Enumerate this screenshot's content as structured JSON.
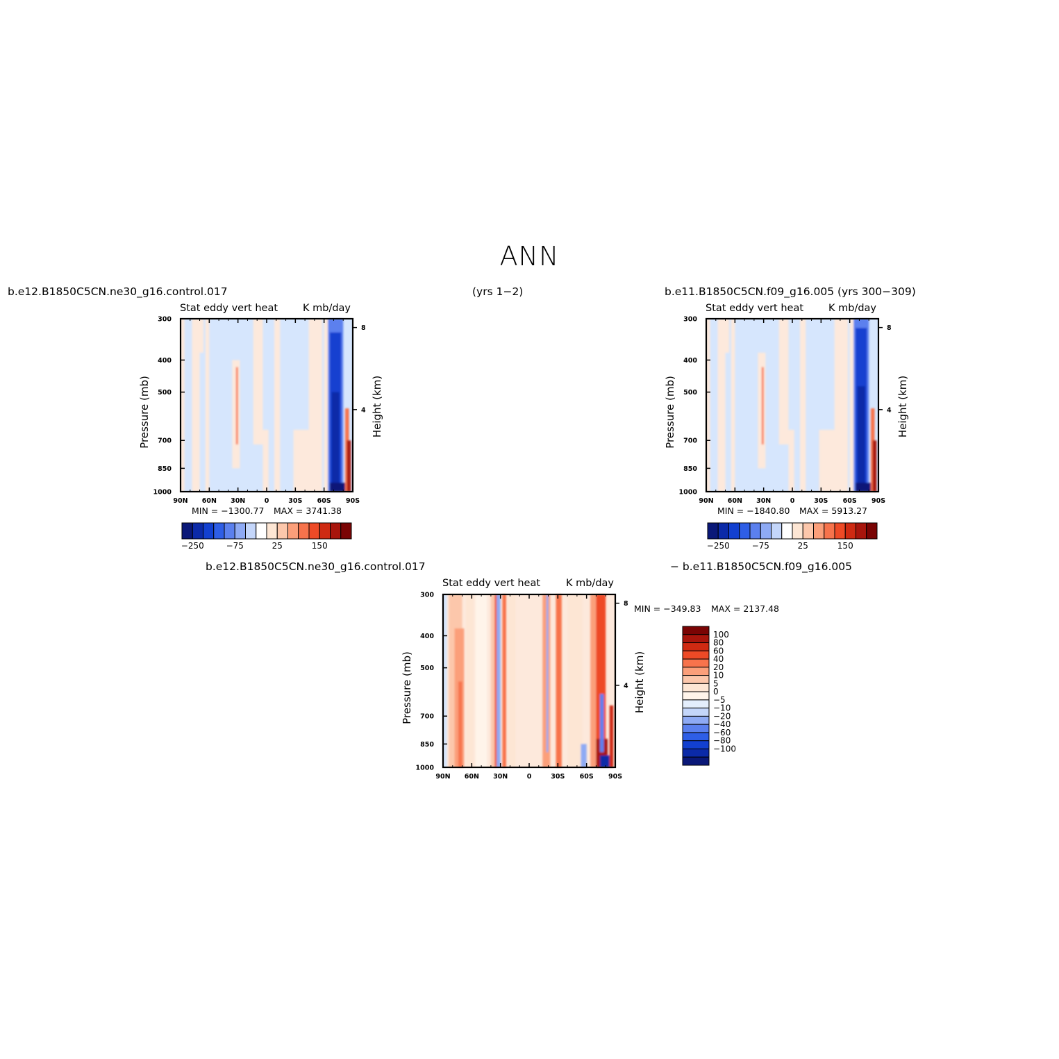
{
  "figure": {
    "title": "ANN",
    "labels": {
      "case1": "b.e12.B1850C5CN.ne30_g16.control.017",
      "case1_years": "(yrs 1−2)",
      "case2": "b.e11.B1850C5CN.f09_g16.005 (yrs 300−309)",
      "diff_left": "b.e12.B1850C5CN.ne30_g16.control.017",
      "diff_right": "−  b.e11.B1850C5CN.f09_g16.005"
    }
  },
  "chart_data": [
    {
      "type": "heatmap",
      "panel": "case1",
      "title_left": "Stat  eddy  vert  heat",
      "title_right": "K  mb/day",
      "xlabel": "",
      "ylabel": "Pressure (mb)",
      "y2label": "Height (km)",
      "x_ticks": [
        "90N",
        "60N",
        "30N",
        "0",
        "30S",
        "60S",
        "90S"
      ],
      "y_ticks": [
        "300",
        "400",
        "500",
        "700",
        "850",
        "1000"
      ],
      "y2_ticks": [
        "8",
        "4"
      ],
      "xlim": [
        90,
        -90
      ],
      "ylim": [
        1000,
        300
      ],
      "y_scale": "log",
      "min_label": "MIN = −1300.77",
      "max_label": "MAX = 3741.38",
      "stats": {
        "min": -1300.77,
        "max": 3741.38
      },
      "colorbar": {
        "orientation": "horizontal",
        "tick_labels": [
          "−250",
          "−75",
          "25",
          "150"
        ]
      }
    },
    {
      "type": "heatmap",
      "panel": "case2",
      "title_left": "Stat  eddy  vert  heat",
      "title_right": "K  mb/day",
      "xlabel": "",
      "ylabel": "Pressure (mb)",
      "y2label": "Height (km)",
      "x_ticks": [
        "90N",
        "60N",
        "30N",
        "0",
        "30S",
        "60S",
        "90S"
      ],
      "y_ticks": [
        "300",
        "400",
        "500",
        "700",
        "850",
        "1000"
      ],
      "y2_ticks": [
        "8",
        "4"
      ],
      "xlim": [
        90,
        -90
      ],
      "ylim": [
        1000,
        300
      ],
      "y_scale": "log",
      "min_label": "MIN = −1840.80",
      "max_label": "MAX = 5913.27",
      "stats": {
        "min": -1840.8,
        "max": 5913.27
      },
      "colorbar": {
        "orientation": "horizontal",
        "tick_labels": [
          "−250",
          "−75",
          "25",
          "150"
        ]
      }
    },
    {
      "type": "heatmap",
      "panel": "difference",
      "title_left": "Stat  eddy  vert  heat",
      "title_right": "K  mb/day",
      "xlabel": "",
      "ylabel": "Pressure (mb)",
      "y2label": "Height (km)",
      "x_ticks": [
        "90N",
        "60N",
        "30N",
        "0",
        "30S",
        "60S",
        "90S"
      ],
      "y_ticks": [
        "300",
        "400",
        "500",
        "700",
        "850",
        "1000"
      ],
      "y2_ticks": [
        "8",
        "4"
      ],
      "xlim": [
        90,
        -90
      ],
      "ylim": [
        1000,
        300
      ],
      "y_scale": "log",
      "min_label": "MIN = −349.83",
      "max_label": "MAX = 2137.48",
      "stats": {
        "min": -349.83,
        "max": 2137.48
      },
      "colorbar": {
        "orientation": "vertical",
        "tick_labels": [
          "100",
          "80",
          "60",
          "40",
          "20",
          "10",
          "5",
          "0",
          "−5",
          "−10",
          "−20",
          "−40",
          "−60",
          "−80",
          "−100"
        ]
      }
    }
  ],
  "colors": {
    "horizontal_bar": [
      "#0a1878",
      "#0b2aa8",
      "#1240d0",
      "#2e5ee6",
      "#5b80ee",
      "#8eaaf4",
      "#c4d6fa",
      "#ffffff",
      "#fde6d4",
      "#fcc7ab",
      "#fb9f7a",
      "#f7734c",
      "#ee4a26",
      "#cf2a12",
      "#a8150c",
      "#7a0404"
    ],
    "vertical_bar": [
      "#7a0404",
      "#a8150c",
      "#cf2a12",
      "#ee4a26",
      "#f7734c",
      "#fb9f7a",
      "#fcc7ab",
      "#fde6d4",
      "#fff4ea",
      "#e4eefc",
      "#c4d6fa",
      "#8eaaf4",
      "#5b80ee",
      "#2e5ee6",
      "#1240d0",
      "#0b2aa8",
      "#0a1878"
    ],
    "light_blue": "#d6e6fd",
    "light_peach": "#fde9dc"
  }
}
